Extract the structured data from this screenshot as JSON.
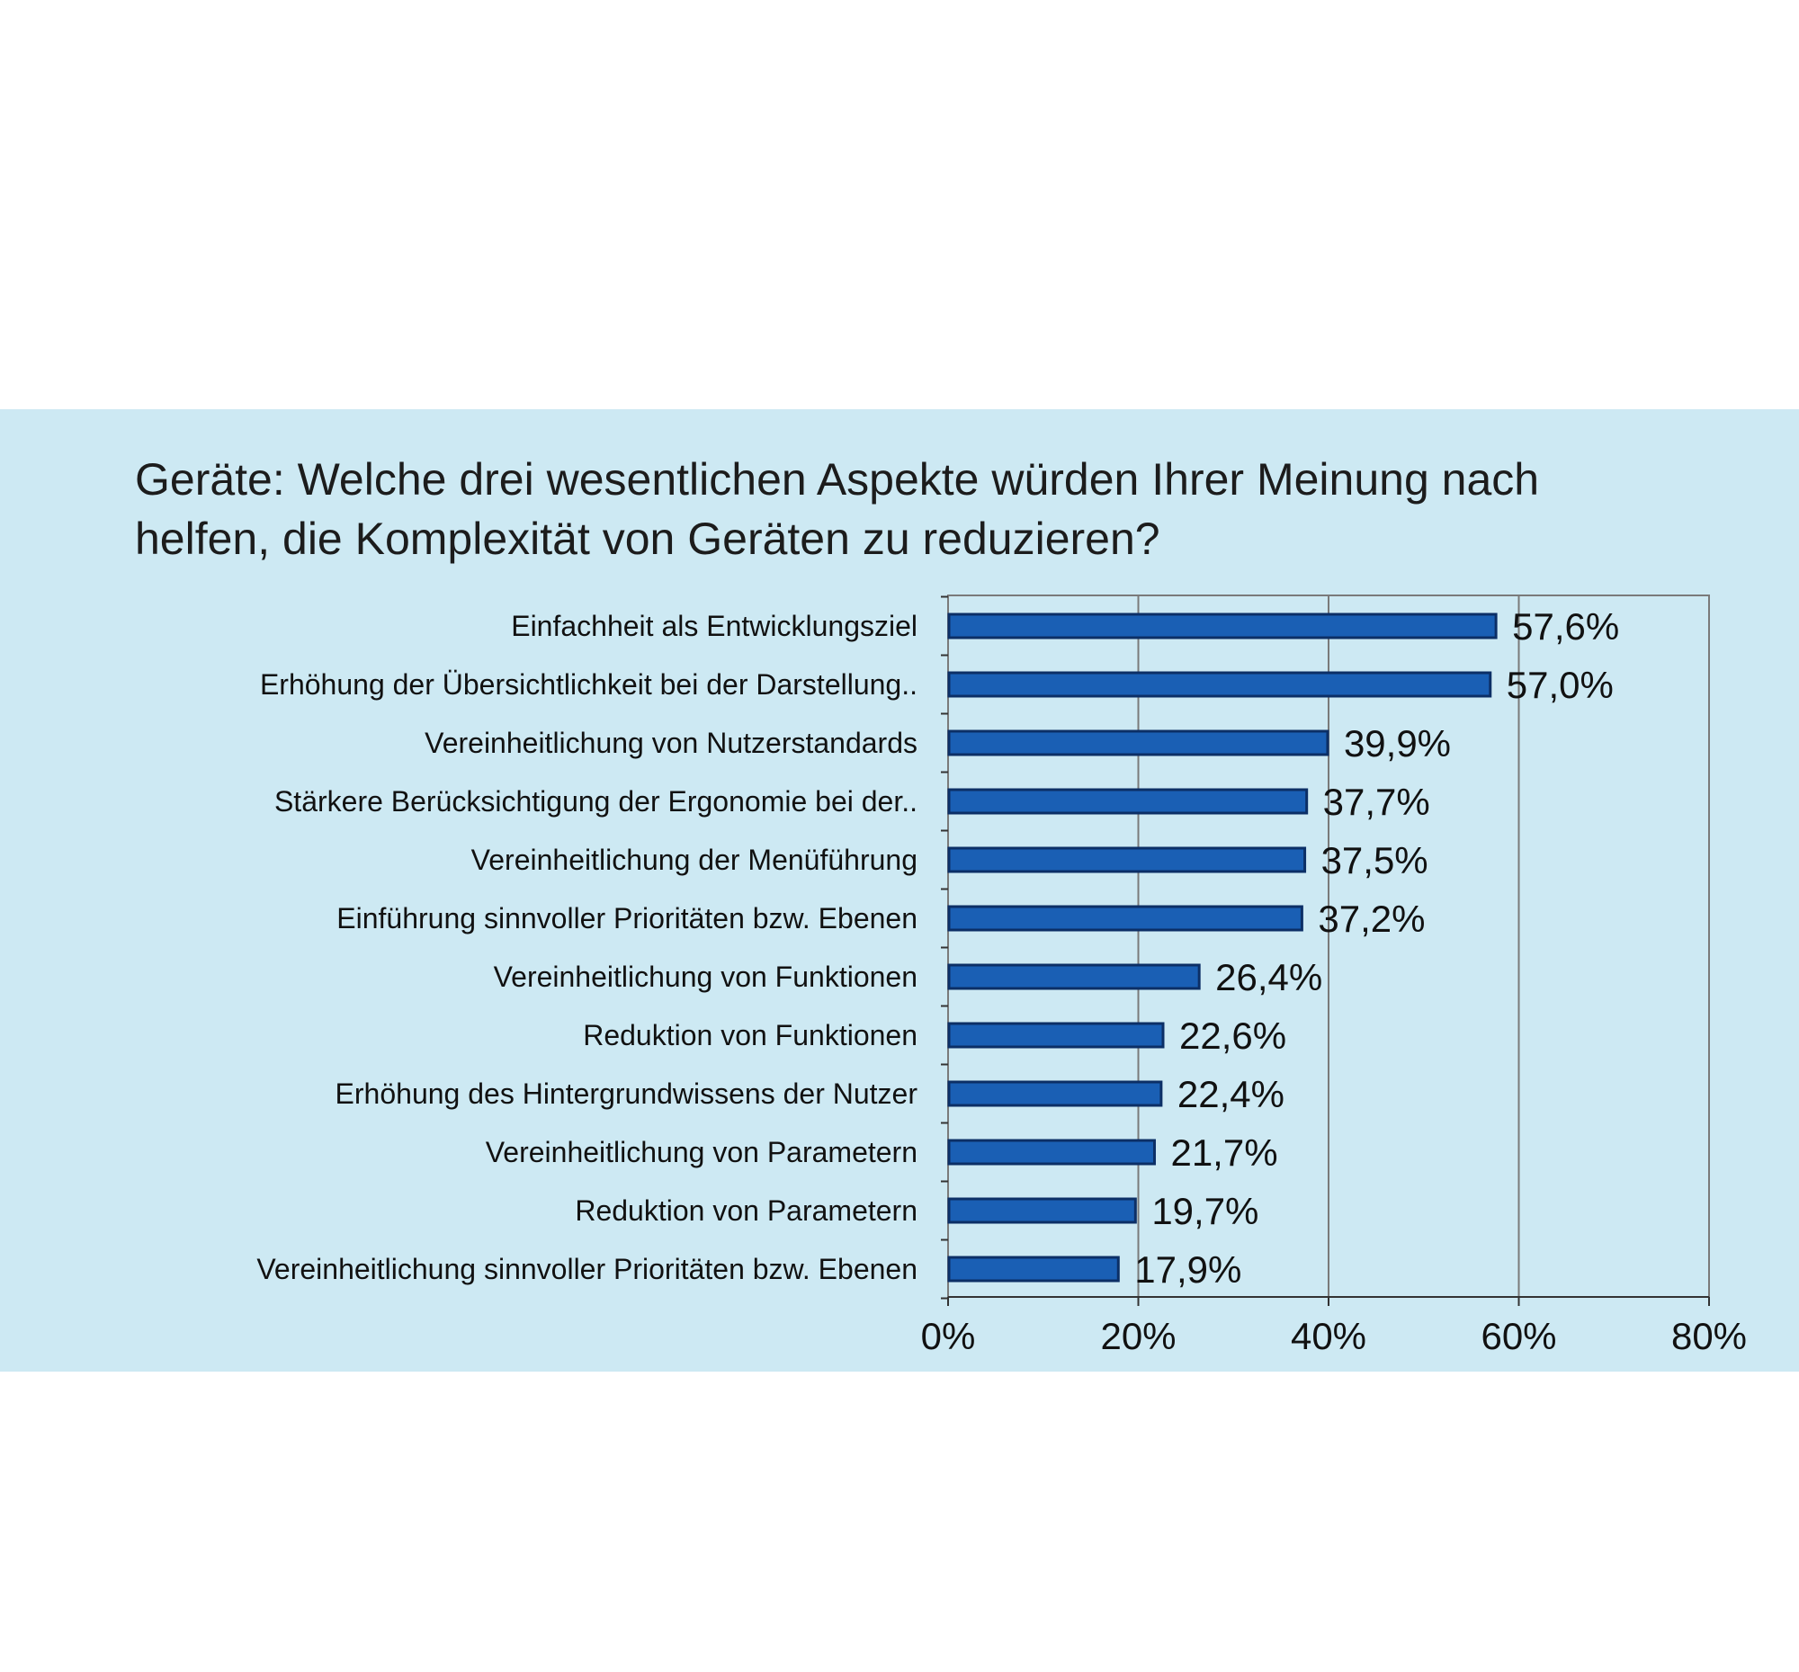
{
  "colors": {
    "panel_background": "#cde9f3",
    "bar_fill": "#1a5fb4",
    "bar_stroke": "#0c2f66",
    "gridline": "#7a7a7a"
  },
  "chart_data": {
    "type": "bar",
    "orientation": "horizontal",
    "title": "Geräte: Welche drei wesentlichen Aspekte würden Ihrer Meinung nach\nhelfen, die Komplexität von Geräten zu reduzieren?",
    "xlabel": "",
    "ylabel": "",
    "xlim": [
      0,
      80
    ],
    "grid": true,
    "legend": "none",
    "categories": [
      "Einfachheit als Entwicklungsziel",
      "Erhöhung der Übersichtlichkeit bei der Darstellung..",
      "Vereinheitlichung von Nutzerstandards",
      "Stärkere Berücksichtigung der Ergonomie bei der..",
      "Vereinheitlichung der Menüführung",
      "Einführung sinnvoller Prioritäten bzw. Ebenen",
      "Vereinheitlichung von Funktionen",
      "Reduktion von Funktionen",
      "Erhöhung des Hintergrundwissens der Nutzer",
      "Vereinheitlichung von Parametern",
      "Reduktion von Parametern",
      "Vereinheitlichung sinnvoller Prioritäten bzw. Ebenen"
    ],
    "values": [
      57.6,
      57.0,
      39.9,
      37.7,
      37.5,
      37.2,
      26.4,
      22.6,
      22.4,
      21.7,
      19.7,
      17.9
    ],
    "value_labels": [
      "57,6%",
      "57,0%",
      "39,9%",
      "37,7%",
      "37,5%",
      "37,2%",
      "26,4%",
      "22,6%",
      "22,4%",
      "21,7%",
      "19,7%",
      "17,9%"
    ],
    "x_ticks": [
      0,
      20,
      40,
      60,
      80
    ],
    "x_tick_labels": [
      "0%",
      "20%",
      "40%",
      "60%",
      "80%"
    ]
  }
}
